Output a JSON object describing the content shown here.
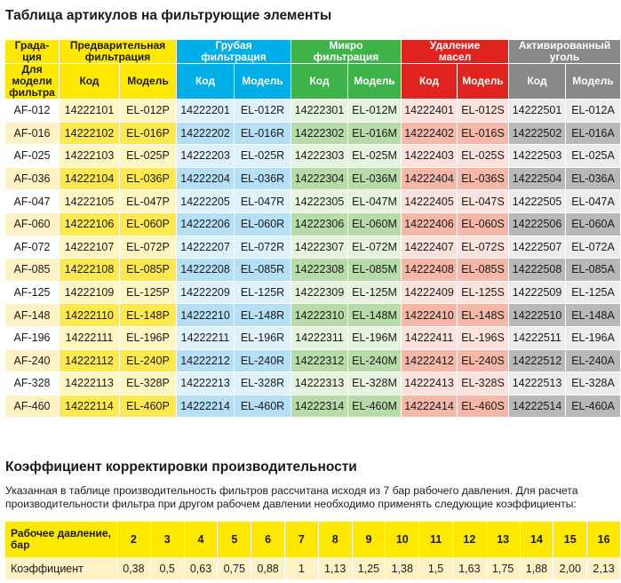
{
  "title": "Таблица артикулов на фильтрующие элементы",
  "groups": {
    "grad": "Града-\nция",
    "pre": "Предварительная\nфильтрация",
    "coarse": "Грубая\nфильтрация",
    "micro": "Микро\nфильтрация",
    "oil": "Удаление\nмасел",
    "carbon": "Активированный\nуголь"
  },
  "subheaders": {
    "model_label": "Для\nмодели\nфильтра",
    "code": "Код",
    "model": "Модель"
  },
  "rows": [
    {
      "grad": "AF-012",
      "c1": "14222101",
      "m1": "EL-012P",
      "c2": "14222201",
      "m2": "EL-012R",
      "c3": "14222301",
      "m3": "EL-012M",
      "c4": "14222401",
      "m4": "EL-012S",
      "c5": "14222501",
      "m5": "EL-012A"
    },
    {
      "grad": "AF-016",
      "c1": "14222102",
      "m1": "EL-016P",
      "c2": "14222202",
      "m2": "EL-016R",
      "c3": "14222302",
      "m3": "EL-016M",
      "c4": "14222402",
      "m4": "EL-016S",
      "c5": "14222502",
      "m5": "EL-016A"
    },
    {
      "grad": "AF-025",
      "c1": "14222103",
      "m1": "EL-025P",
      "c2": "14222203",
      "m2": "EL-025R",
      "c3": "14222303",
      "m3": "EL-025M",
      "c4": "14222403",
      "m4": "EL-025S",
      "c5": "14222503",
      "m5": "EL-025A"
    },
    {
      "grad": "AF-036",
      "c1": "14222104",
      "m1": "EL-036P",
      "c2": "14222204",
      "m2": "EL-036R",
      "c3": "14222304",
      "m3": "EL-036M",
      "c4": "14222404",
      "m4": "EL-036S",
      "c5": "14222504",
      "m5": "EL-036A"
    },
    {
      "grad": "AF-047",
      "c1": "14222105",
      "m1": "EL-047P",
      "c2": "14222205",
      "m2": "EL-047R",
      "c3": "14222305",
      "m3": "EL-047M",
      "c4": "14222405",
      "m4": "EL-047S",
      "c5": "14222505",
      "m5": "EL-047A"
    },
    {
      "grad": "AF-060",
      "c1": "14222106",
      "m1": "EL-060P",
      "c2": "14222206",
      "m2": "EL-060R",
      "c3": "14222306",
      "m3": "EL-060M",
      "c4": "14222406",
      "m4": "EL-060S",
      "c5": "14222506",
      "m5": "EL-060A"
    },
    {
      "grad": "AF-072",
      "c1": "14222107",
      "m1": "EL-072P",
      "c2": "14222207",
      "m2": "EL-072R",
      "c3": "14222307",
      "m3": "EL-072M",
      "c4": "14222407",
      "m4": "EL-072S",
      "c5": "14222507",
      "m5": "EL-072A"
    },
    {
      "grad": "AF-085",
      "c1": "14222108",
      "m1": "EL-085P",
      "c2": "14222208",
      "m2": "EL-085R",
      "c3": "14222308",
      "m3": "EL-085M",
      "c4": "14222408",
      "m4": "EL-085S",
      "c5": "14222508",
      "m5": "EL-085A"
    },
    {
      "grad": "AF-125",
      "c1": "14222109",
      "m1": "EL-125P",
      "c2": "14222209",
      "m2": "EL-125R",
      "c3": "14222309",
      "m3": "EL-125M",
      "c4": "14222409",
      "m4": "EL-125S",
      "c5": "14222509",
      "m5": "EL-125A"
    },
    {
      "grad": "AF-148",
      "c1": "14222110",
      "m1": "EL-148P",
      "c2": "14222210",
      "m2": "EL-148R",
      "c3": "14222310",
      "m3": "EL-148M",
      "c4": "14222410",
      "m4": "EL-148S",
      "c5": "14222510",
      "m5": "EL-148A"
    },
    {
      "grad": "AF-196",
      "c1": "14222111",
      "m1": "EL-196P",
      "c2": "14222211",
      "m2": "EL-196R",
      "c3": "14222311",
      "m3": "EL-196M",
      "c4": "14222411",
      "m4": "EL-196S",
      "c5": "14222511",
      "m5": "EL-196A"
    },
    {
      "grad": "AF-240",
      "c1": "14222112",
      "m1": "EL-240P",
      "c2": "14222212",
      "m2": "EL-240R",
      "c3": "14222312",
      "m3": "EL-240M",
      "c4": "14222412",
      "m4": "EL-240S",
      "c5": "14222512",
      "m5": "EL-240A"
    },
    {
      "grad": "AF-328",
      "c1": "14222113",
      "m1": "EL-328P",
      "c2": "14222213",
      "m2": "EL-328R",
      "c3": "14222313",
      "m3": "EL-328M",
      "c4": "14222413",
      "m4": "EL-328S",
      "c5": "14222513",
      "m5": "EL-328A"
    },
    {
      "grad": "AF-460",
      "c1": "14222114",
      "m1": "EL-460P",
      "c2": "14222214",
      "m2": "EL-460R",
      "c3": "14222314",
      "m3": "EL-460M",
      "c4": "14222414",
      "m4": "EL-460S",
      "c5": "14222514",
      "m5": "EL-460A"
    }
  ],
  "coef_section": {
    "title": "Коэффициент корректировки производительности",
    "note": "Указанная в таблице производительность фильтров  рассчитана исходя из 7 бар рабочего давления. Для расчета производительности фильтра при другом рабочем давлении необходимо применять следующие коэффициенты:",
    "pressure_label": "Рабочее давление,\nбар",
    "coef_label": "Коэффициент",
    "pressures": [
      "2",
      "3",
      "4",
      "5",
      "6",
      "7",
      "8",
      "9",
      "10",
      "11",
      "12",
      "13",
      "14",
      "15",
      "16"
    ],
    "coefficients": [
      "0,38",
      "0,5",
      "0,63",
      "0,75",
      "0,88",
      "1",
      "1,13",
      "1,25",
      "1,38",
      "1,5",
      "1,63",
      "1,75",
      "1,88",
      "2,00",
      "2,13"
    ]
  },
  "colors": {
    "yellow": "#ffe800",
    "blue": "#00aee8",
    "green": "#3db34a",
    "red": "#e0231f",
    "gray": "#888888"
  }
}
